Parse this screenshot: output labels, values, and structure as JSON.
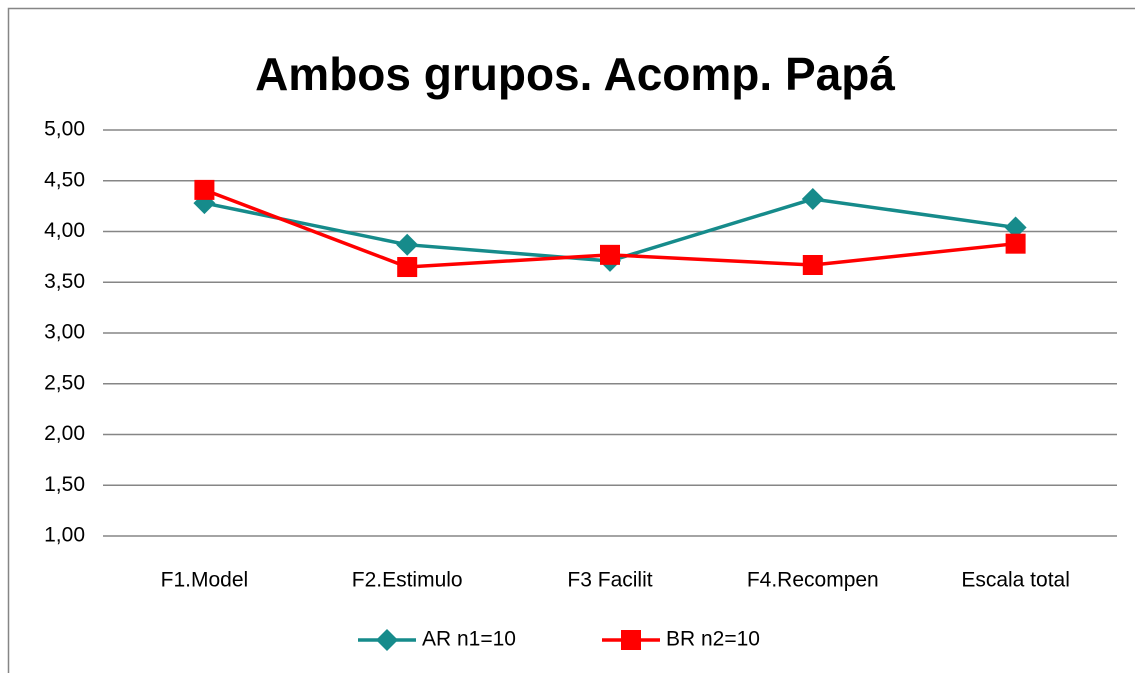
{
  "chart_data": {
    "type": "line",
    "title": "Ambos grupos. Acomp. Papá",
    "categories": [
      "F1.Model",
      "F2.Estimulo",
      "F3 Facilit",
      "F4.Recompen",
      "Escala total"
    ],
    "series": [
      {
        "name": "AR n1=10",
        "color": "#168b8b",
        "marker": "diamond",
        "values": [
          4.28,
          3.87,
          3.71,
          4.32,
          4.04
        ]
      },
      {
        "name": "BR n2=10",
        "color": "#ff0000",
        "marker": "square",
        "values": [
          4.41,
          3.65,
          3.77,
          3.67,
          3.88
        ]
      }
    ],
    "ylim": [
      1,
      5
    ],
    "yticks": [
      {
        "value": 1,
        "label": "1,00"
      },
      {
        "value": 1.5,
        "label": "1,50"
      },
      {
        "value": 2,
        "label": "2,00"
      },
      {
        "value": 2.5,
        "label": "2,50"
      },
      {
        "value": 3,
        "label": "3,00"
      },
      {
        "value": 3.5,
        "label": "3,50"
      },
      {
        "value": 4,
        "label": "4,00"
      },
      {
        "value": 4.5,
        "label": "4,50"
      },
      {
        "value": 5,
        "label": "5,00"
      }
    ],
    "grid": true,
    "legend": "bottom"
  }
}
